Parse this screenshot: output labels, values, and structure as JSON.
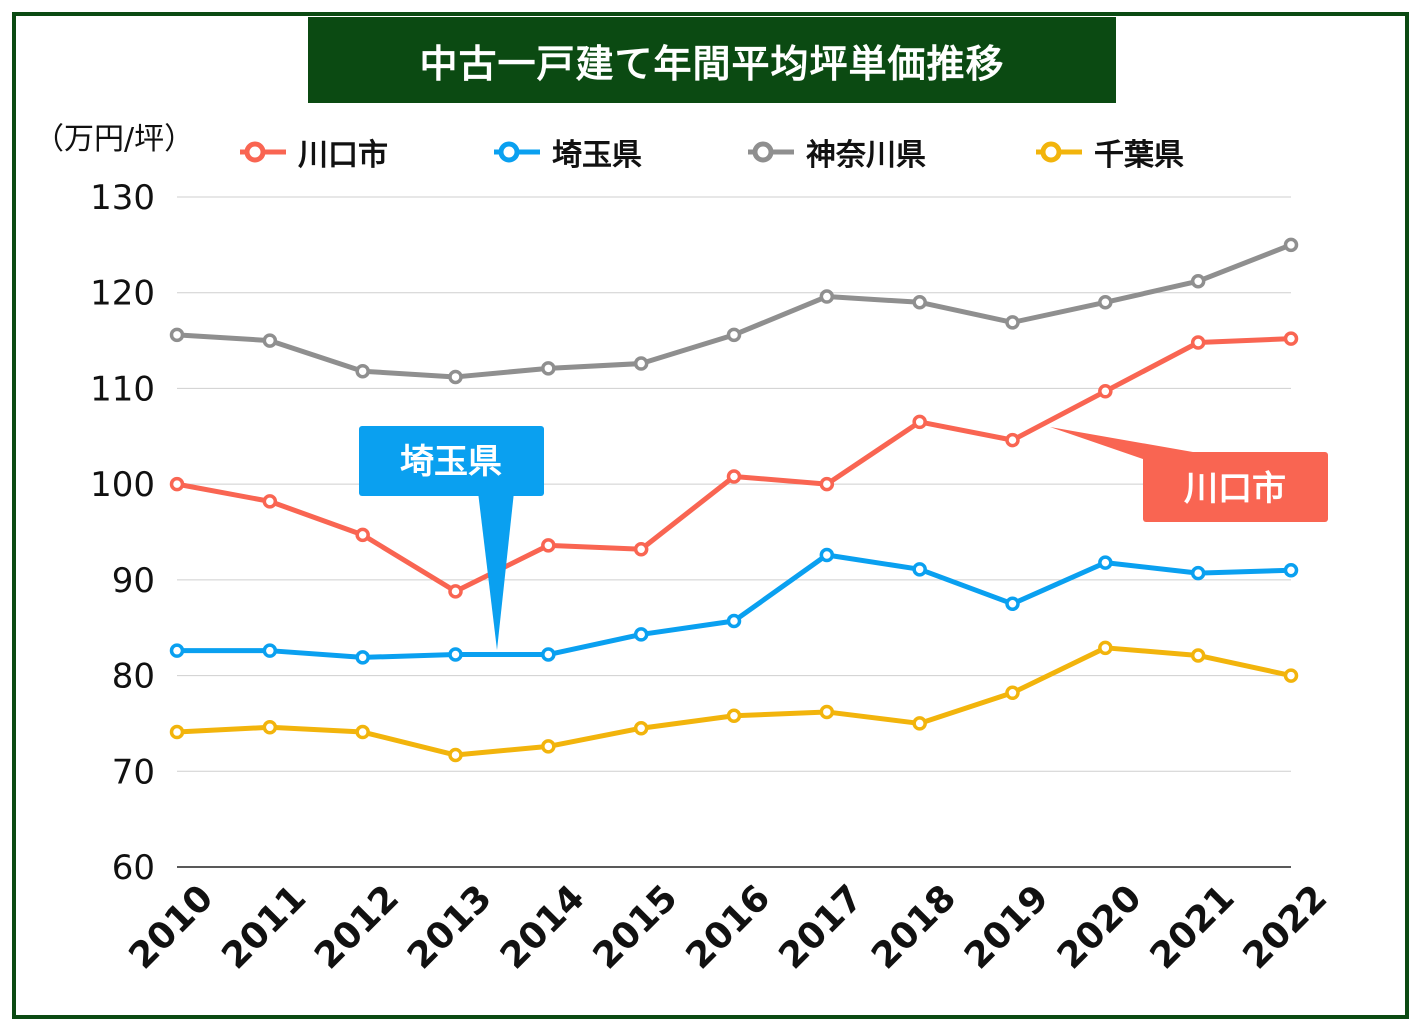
{
  "title": "中古一戸建て年間平均坪単価推移",
  "unit_label": "（万円/坪）",
  "legend": [
    {
      "label": "川口市",
      "color": "#f96552"
    },
    {
      "label": "埼玉県",
      "color": "#0aa0f0"
    },
    {
      "label": "神奈川県",
      "color": "#8f8f8f"
    },
    {
      "label": "千葉県",
      "color": "#f2b40c"
    }
  ],
  "callouts": {
    "saitama": {
      "label": "埼玉県",
      "color": "#0aa0f0"
    },
    "kawaguchi": {
      "label": "川口市",
      "color": "#f96552"
    }
  },
  "chart_data": {
    "type": "line",
    "title": "中古一戸建て年間平均坪単価推移",
    "xlabel": "",
    "ylabel": "（万円/坪）",
    "ylim": [
      60,
      130
    ],
    "yticks": [
      60,
      70,
      80,
      90,
      100,
      110,
      120,
      130
    ],
    "grid": true,
    "legend_position": "top",
    "categories": [
      "2010",
      "2011",
      "2012",
      "2013",
      "2014",
      "2015",
      "2016",
      "2017",
      "2018",
      "2019",
      "2020",
      "2021",
      "2022"
    ],
    "series": [
      {
        "name": "川口市",
        "color": "#f96552",
        "values": [
          100.0,
          98.2,
          94.7,
          88.8,
          93.6,
          93.2,
          100.8,
          100.0,
          106.5,
          104.6,
          109.7,
          114.8,
          115.2
        ]
      },
      {
        "name": "埼玉県",
        "color": "#0aa0f0",
        "values": [
          82.6,
          82.6,
          81.9,
          82.2,
          82.2,
          84.3,
          85.7,
          92.6,
          91.1,
          87.5,
          91.8,
          90.7,
          91.0
        ]
      },
      {
        "name": "神奈川県",
        "color": "#8f8f8f",
        "values": [
          115.6,
          115.0,
          111.8,
          111.2,
          112.1,
          112.6,
          115.6,
          119.6,
          119.0,
          116.9,
          119.0,
          121.2,
          125.0
        ]
      },
      {
        "name": "千葉県",
        "color": "#f2b40c",
        "values": [
          74.1,
          74.6,
          74.1,
          71.7,
          72.6,
          74.5,
          75.8,
          76.2,
          75.0,
          78.2,
          82.9,
          82.1,
          80.0
        ]
      }
    ]
  }
}
